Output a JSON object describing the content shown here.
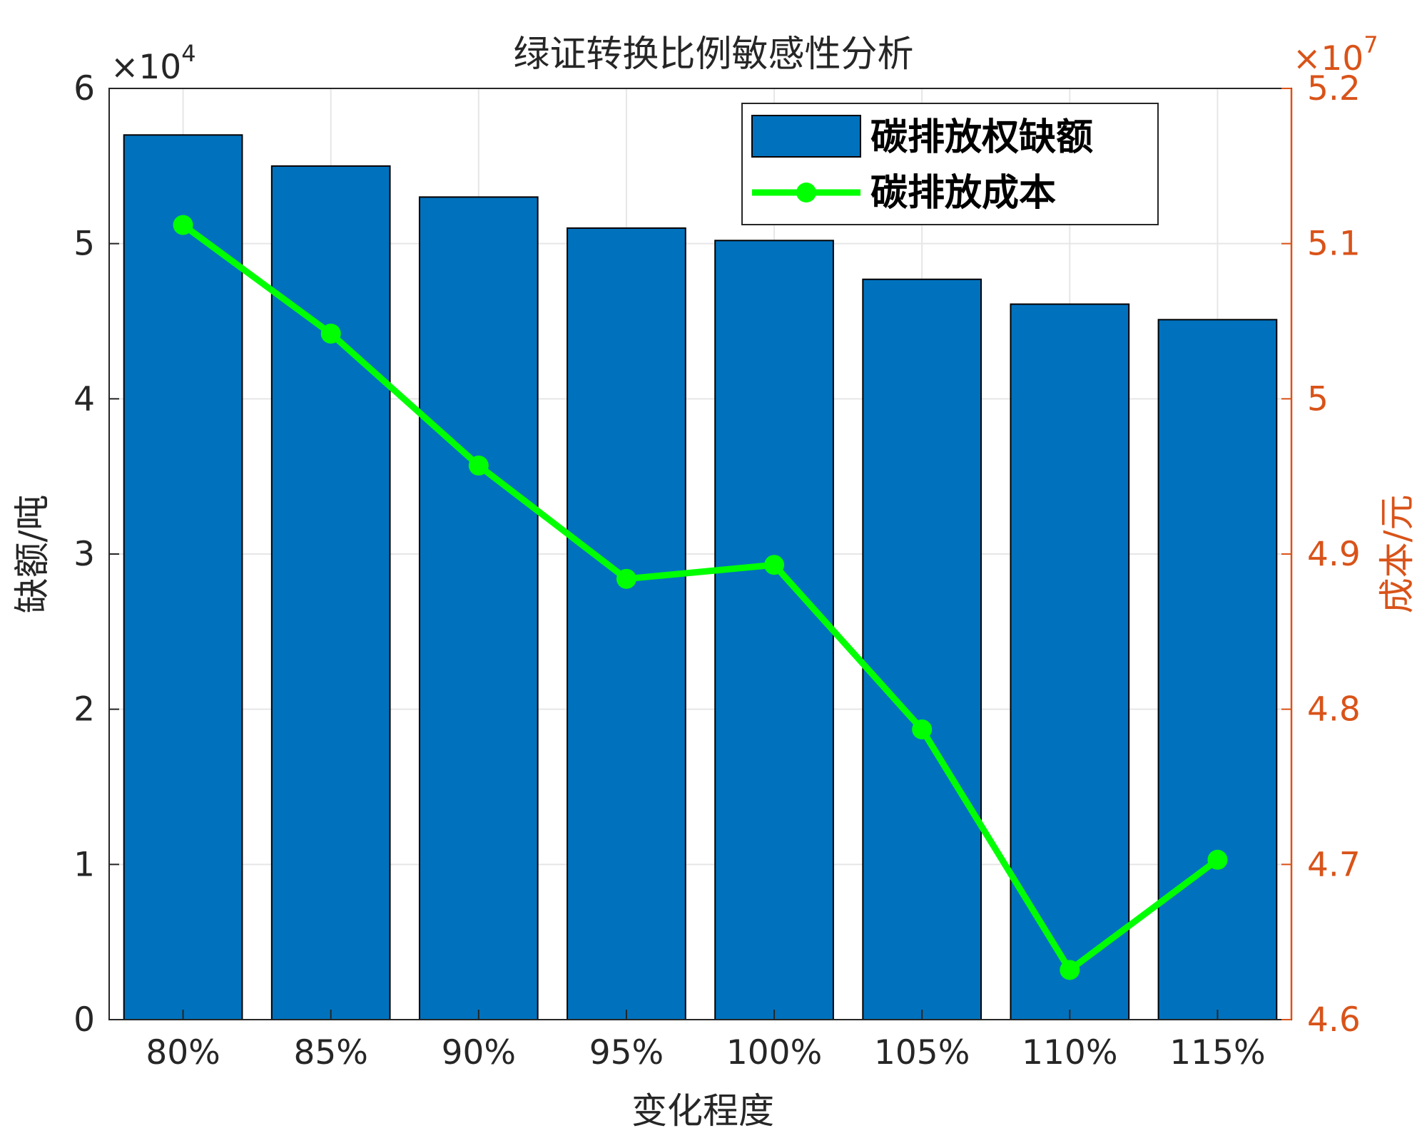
{
  "chart_data": {
    "type": "bar",
    "title": "绿证转换比例敏感性分析",
    "xlabel": "变化程度",
    "categories": [
      "80%",
      "85%",
      "90%",
      "95%",
      "100%",
      "105%",
      "110%",
      "115%"
    ],
    "left_axis": {
      "label": "缺额/吨",
      "ylim": [
        0,
        60000
      ],
      "ticks": [
        0,
        1,
        2,
        3,
        4,
        5,
        6
      ],
      "exponent_prefix": "×10",
      "exponent": "4",
      "color": "#262626"
    },
    "right_axis": {
      "label": "成本/元",
      "ylim": [
        46000000,
        52000000
      ],
      "ticks": [
        "4.6",
        "4.7",
        "4.8",
        "4.9",
        "5",
        "5.1",
        "5.2"
      ],
      "exponent_prefix": "×10",
      "exponent": "7",
      "color": "#D95319"
    },
    "series": [
      {
        "name": "碳排放权缺额",
        "type": "bar",
        "axis": "left",
        "color": "#0072BD",
        "values": [
          57000,
          55000,
          53000,
          51000,
          50200,
          47700,
          46100,
          45100
        ]
      },
      {
        "name": "碳排放成本",
        "type": "line",
        "axis": "right",
        "color": "#00FF00",
        "marker": "circle",
        "values": [
          51120000,
          50420000,
          49570000,
          48840000,
          48930000,
          47870000,
          46320000,
          47030000
        ]
      }
    ],
    "legend_position": "top-right",
    "grid": true
  }
}
